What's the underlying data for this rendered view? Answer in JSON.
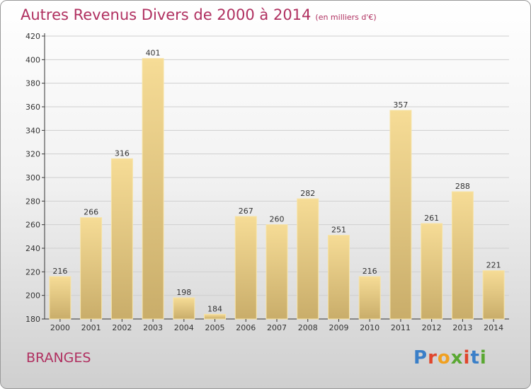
{
  "title": "Autres Revenus Divers de 2000 à 2014",
  "unit_note": "(en milliers d'€)",
  "commune": "BRANGES",
  "logo": "Proxiti",
  "colors": {
    "title": "#b03060",
    "bar_light": "#f6dc96",
    "bar_dark": "#c9ad6a",
    "grid": "#cfcfcf",
    "axis": "#333333"
  },
  "chart_data": {
    "type": "bar",
    "categories": [
      "2000",
      "2001",
      "2002",
      "2003",
      "2004",
      "2005",
      "2006",
      "2007",
      "2008",
      "2009",
      "2010",
      "2011",
      "2012",
      "2013",
      "2014"
    ],
    "values": [
      216,
      266,
      316,
      401,
      198,
      184,
      267,
      260,
      282,
      251,
      216,
      357,
      261,
      288,
      221
    ],
    "ylim": [
      180,
      420
    ],
    "yticks": [
      180,
      200,
      220,
      240,
      260,
      280,
      300,
      320,
      340,
      360,
      380,
      400,
      420
    ],
    "grid": true,
    "xlabel": "",
    "ylabel": ""
  }
}
